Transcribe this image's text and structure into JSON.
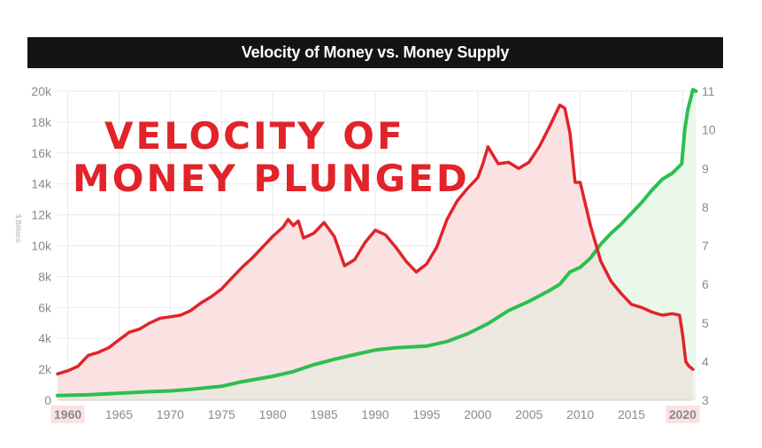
{
  "chart_data": {
    "type": "line",
    "title": "Velocity of Money vs. Money Supply",
    "ylabel": "$ Billions",
    "annotation_lines": [
      "VELOCITY OF",
      "MONEY PLUNGED"
    ],
    "x_range": [
      1959,
      2021
    ],
    "x_ticks": [
      "1960",
      "1965",
      "1970",
      "1975",
      "1980",
      "1985",
      "1990",
      "1995",
      "2000",
      "2005",
      "2010",
      "2015",
      "2020"
    ],
    "x_ticks_highlighted": [
      "1960",
      "2020"
    ],
    "y_left": {
      "range": [
        0,
        20000
      ],
      "ticks": [
        "0",
        "2k",
        "4k",
        "6k",
        "8k",
        "10k",
        "12k",
        "14k",
        "16k",
        "18k",
        "20k"
      ]
    },
    "y_right": {
      "range": [
        3,
        11
      ],
      "ticks": [
        "3",
        "4",
        "5",
        "6",
        "7",
        "8",
        "9",
        "10",
        "11"
      ]
    },
    "grid": true,
    "series": [
      {
        "axis": "left",
        "color": "#2dbf4e",
        "x": [
          1959,
          1962,
          1965,
          1968,
          1970,
          1972,
          1975,
          1977,
          1980,
          1982,
          1984,
          1986,
          1988,
          1990,
          1992,
          1995,
          1997,
          1999,
          2001,
          2003,
          2005,
          2007,
          2008,
          2009,
          2010,
          2011,
          2012,
          2013,
          2014,
          2015,
          2016,
          2017,
          2018,
          2019,
          2019.9,
          2020.2,
          2020.5,
          2021,
          2021.3
        ],
        "y": [
          300,
          350,
          450,
          550,
          600,
          700,
          900,
          1200,
          1550,
          1850,
          2300,
          2650,
          2950,
          3250,
          3400,
          3500,
          3800,
          4300,
          4950,
          5800,
          6400,
          7100,
          7500,
          8300,
          8600,
          9200,
          10100,
          10800,
          11400,
          12100,
          12800,
          13600,
          14300,
          14700,
          15300,
          17500,
          18800,
          20100,
          20000
        ]
      },
      {
        "axis": "left",
        "color": "#e0242a",
        "x": [
          1959,
          1960,
          1961,
          1962,
          1963,
          1964,
          1965,
          1966,
          1967,
          1968,
          1969,
          1970,
          1971,
          1972,
          1973,
          1974,
          1975,
          1976,
          1977,
          1978,
          1979,
          1980,
          1981,
          1981.5,
          1982,
          1982.5,
          1983,
          1984,
          1985,
          1986,
          1987,
          1988,
          1989,
          1990,
          1991,
          1992,
          1993,
          1994,
          1995,
          1996,
          1997,
          1998,
          1999,
          2000,
          2000.5,
          2001,
          2002,
          2003,
          2004,
          2005,
          2006,
          2007,
          2008,
          2008.5,
          2009,
          2009.5,
          2010,
          2011,
          2012,
          2013,
          2014,
          2015,
          2016,
          2017,
          2018,
          2019,
          2019.7,
          2020,
          2020.3,
          2020.6,
          2021
        ],
        "y": [
          1700,
          1900,
          2200,
          2900,
          3100,
          3400,
          3900,
          4400,
          4600,
          5000,
          5300,
          5400,
          5500,
          5800,
          6300,
          6700,
          7200,
          7900,
          8600,
          9200,
          9900,
          10600,
          11200,
          11700,
          11300,
          11600,
          10500,
          10800,
          11500,
          10600,
          8700,
          9100,
          10200,
          11000,
          10700,
          9900,
          9000,
          8300,
          8800,
          9900,
          11700,
          12900,
          13700,
          14400,
          15300,
          16400,
          15300,
          15400,
          15000,
          15400,
          16400,
          17700,
          19100,
          18900,
          17300,
          14100,
          14100,
          11300,
          9000,
          7700,
          6900,
          6200,
          6000,
          5700,
          5500,
          5600,
          5500,
          4200,
          2500,
          2200,
          2000
        ]
      }
    ]
  },
  "colors": {
    "velocity_line": "#e0242a",
    "velocity_fill": "#fbe2e2",
    "supply_line": "#2dbf4e",
    "supply_fill": "#eaf8ec",
    "overlap_fill": "#ece7df",
    "grid": "#e9e9e9",
    "title_bg": "#141414"
  }
}
